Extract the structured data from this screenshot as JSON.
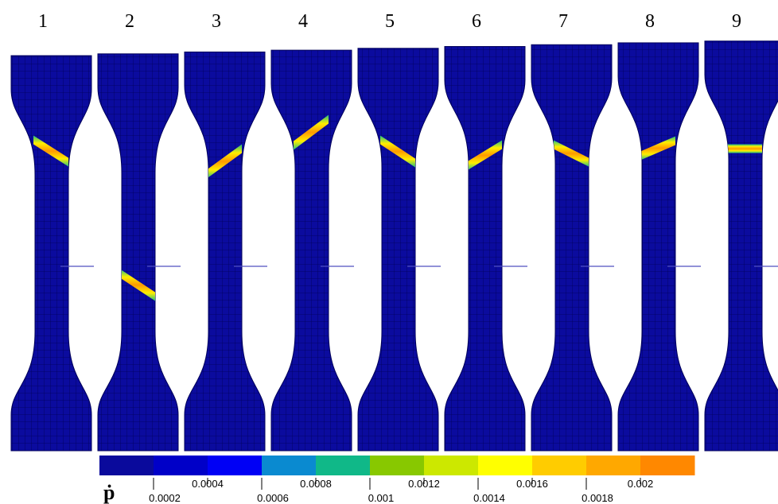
{
  "specimens": {
    "labels": [
      "1",
      "2",
      "3",
      "4",
      "5",
      "6",
      "7",
      "8",
      "9"
    ]
  },
  "colorbar": {
    "symbol": "ṗ",
    "colors": [
      "#0a0a9c",
      "#0000c8",
      "#0000f5",
      "#0a8ad0",
      "#10b888",
      "#88c800",
      "#cce800",
      "#ffff00",
      "#ffcc00",
      "#ffa800",
      "#ff8800"
    ],
    "ticks": [
      "0.0002",
      "0.0004",
      "0.0006",
      "0.0008",
      "0.001",
      "0.0012",
      "0.0014",
      "0.0016",
      "0.0018",
      "0.002"
    ]
  }
}
